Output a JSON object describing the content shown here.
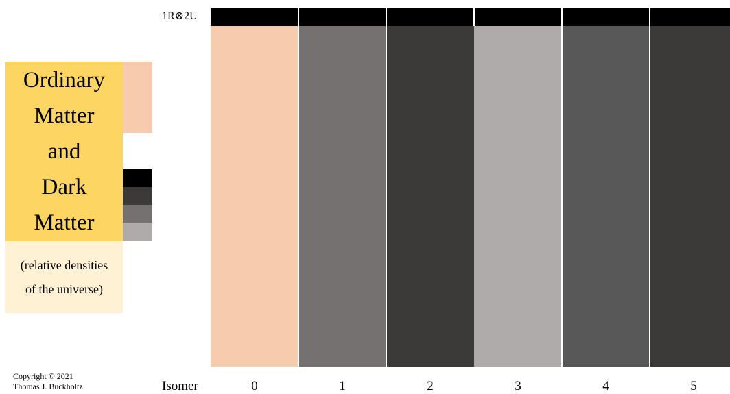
{
  "title_lines": [
    "Ordinary",
    "Matter",
    "and",
    "Dark",
    "Matter"
  ],
  "subtitle_lines": [
    "(relative densities",
    "of the universe)"
  ],
  "legend_colors": {
    "ordinary_matter": "#f6cbae",
    "dark_levels": [
      "#000000",
      "#3c3939",
      "#767171",
      "#afabab"
    ]
  },
  "top_label": "1R⊗2U",
  "bar_color": "#000000",
  "xaxis_label": "Isomer",
  "isomers": [
    {
      "label": "0",
      "color": "#f6cbae"
    },
    {
      "label": "1",
      "color": "#767171"
    },
    {
      "label": "2",
      "color": "#3c3939"
    },
    {
      "label": "3",
      "color": "#afabab"
    },
    {
      "label": "4",
      "color": "#585858"
    },
    {
      "label": "5",
      "color": "#3c3939"
    }
  ],
  "copyright": [
    "Copyright © 2021",
    "Thomas J. Buckholtz"
  ]
}
